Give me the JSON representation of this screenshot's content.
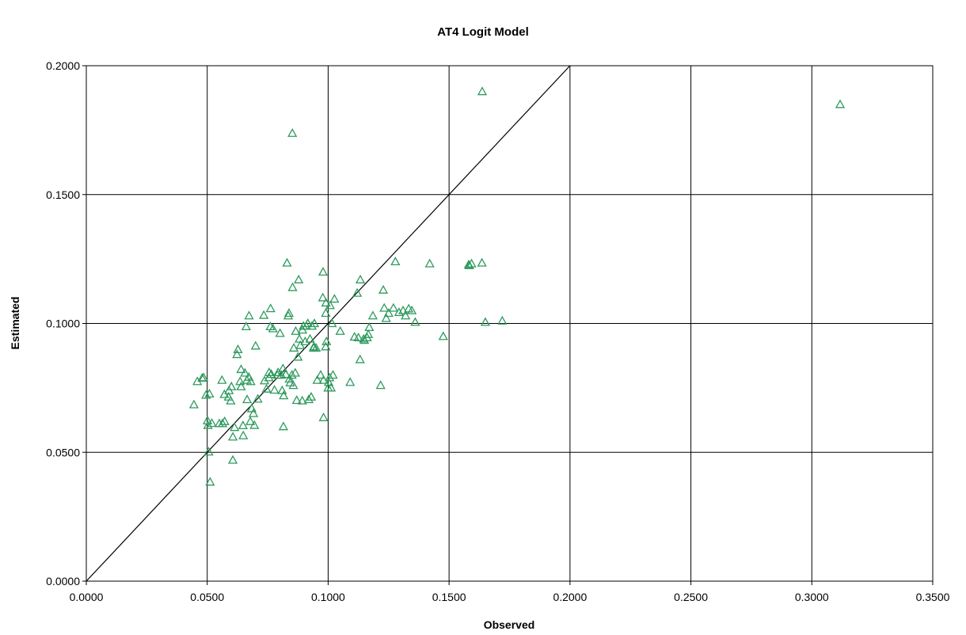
{
  "chart_data": {
    "type": "scatter",
    "title": "AT4 Logit Model",
    "xlabel": "Observed",
    "ylabel": "Estimated",
    "xlim": [
      0,
      0.35
    ],
    "ylim": [
      0,
      0.2
    ],
    "x_ticks": [
      "0.0000",
      "0.0500",
      "0.1000",
      "0.1500",
      "0.2000",
      "0.2500",
      "0.3000",
      "0.3500"
    ],
    "y_ticks": [
      "0.0000",
      "0.0500",
      "0.1000",
      "0.1500",
      "0.2000"
    ],
    "grid": true,
    "marker": "triangle-open",
    "marker_color": "#2e9a5e",
    "reference_line": {
      "from": [
        0,
        0
      ],
      "to": [
        0.2,
        0.2
      ]
    },
    "points": [
      [
        0.0445,
        0.0685
      ],
      [
        0.0459,
        0.0775
      ],
      [
        0.0479,
        0.0788
      ],
      [
        0.0485,
        0.079
      ],
      [
        0.0495,
        0.0722
      ],
      [
        0.0501,
        0.0623
      ],
      [
        0.0509,
        0.0727
      ],
      [
        0.0503,
        0.0605
      ],
      [
        0.0506,
        0.0502
      ],
      [
        0.0512,
        0.0385
      ],
      [
        0.0519,
        0.0613
      ],
      [
        0.055,
        0.0612
      ],
      [
        0.0563,
        0.0612
      ],
      [
        0.0572,
        0.062
      ],
      [
        0.0561,
        0.078
      ],
      [
        0.0571,
        0.0725
      ],
      [
        0.059,
        0.074
      ],
      [
        0.0588,
        0.0715
      ],
      [
        0.0597,
        0.07
      ],
      [
        0.06,
        0.0755
      ],
      [
        0.0606,
        0.047
      ],
      [
        0.0606,
        0.056
      ],
      [
        0.0613,
        0.0597
      ],
      [
        0.0623,
        0.088
      ],
      [
        0.0627,
        0.0899
      ],
      [
        0.0636,
        0.0775
      ],
      [
        0.064,
        0.0822
      ],
      [
        0.064,
        0.0755
      ],
      [
        0.0648,
        0.0604
      ],
      [
        0.0649,
        0.0565
      ],
      [
        0.0656,
        0.0808
      ],
      [
        0.0661,
        0.0988
      ],
      [
        0.0664,
        0.078
      ],
      [
        0.0665,
        0.0705
      ],
      [
        0.0672,
        0.0792
      ],
      [
        0.0673,
        0.103
      ],
      [
        0.0678,
        0.062
      ],
      [
        0.068,
        0.0775
      ],
      [
        0.0684,
        0.067
      ],
      [
        0.0691,
        0.0651
      ],
      [
        0.0695,
        0.0605
      ],
      [
        0.07,
        0.0913
      ],
      [
        0.0709,
        0.0707
      ],
      [
        0.0734,
        0.1032
      ],
      [
        0.0737,
        0.0778
      ],
      [
        0.0745,
        0.0746
      ],
      [
        0.0755,
        0.079
      ],
      [
        0.0756,
        0.081
      ],
      [
        0.0761,
        0.0988
      ],
      [
        0.0762,
        0.1058
      ],
      [
        0.0765,
        0.0803
      ],
      [
        0.0772,
        0.098
      ],
      [
        0.0778,
        0.0742
      ],
      [
        0.079,
        0.08
      ],
      [
        0.0793,
        0.081
      ],
      [
        0.0801,
        0.0962
      ],
      [
        0.0806,
        0.08
      ],
      [
        0.081,
        0.074
      ],
      [
        0.0815,
        0.06
      ],
      [
        0.0813,
        0.0825
      ],
      [
        0.0816,
        0.072
      ],
      [
        0.0825,
        0.0803
      ],
      [
        0.083,
        0.1235
      ],
      [
        0.0835,
        0.103
      ],
      [
        0.0838,
        0.104
      ],
      [
        0.084,
        0.0785
      ],
      [
        0.0843,
        0.077
      ],
      [
        0.085,
        0.08
      ],
      [
        0.0852,
        0.1738
      ],
      [
        0.0856,
        0.076
      ],
      [
        0.0853,
        0.114
      ],
      [
        0.0858,
        0.0905
      ],
      [
        0.0866,
        0.097
      ],
      [
        0.0864,
        0.0808
      ],
      [
        0.087,
        0.0702
      ],
      [
        0.0875,
        0.087
      ],
      [
        0.0878,
        0.117
      ],
      [
        0.0881,
        0.094
      ],
      [
        0.0885,
        0.0915
      ],
      [
        0.0893,
        0.07
      ],
      [
        0.0894,
        0.0975
      ],
      [
        0.0898,
        0.099
      ],
      [
        0.0905,
        0.093
      ],
      [
        0.091,
        0.099
      ],
      [
        0.0916,
        0.1
      ],
      [
        0.092,
        0.0705
      ],
      [
        0.0925,
        0.094
      ],
      [
        0.093,
        0.0715
      ],
      [
        0.0933,
        0.099
      ],
      [
        0.0941,
        0.091
      ],
      [
        0.094,
        0.0905
      ],
      [
        0.0943,
        0.1
      ],
      [
        0.095,
        0.0905
      ],
      [
        0.0955,
        0.078
      ],
      [
        0.0969,
        0.08
      ],
      [
        0.0978,
        0.11
      ],
      [
        0.0979,
        0.12
      ],
      [
        0.0981,
        0.0635
      ],
      [
        0.0981,
        0.078
      ],
      [
        0.099,
        0.104
      ],
      [
        0.0991,
        0.108
      ],
      [
        0.099,
        0.091
      ],
      [
        0.0993,
        0.093
      ],
      [
        0.1,
        0.075
      ],
      [
        0.1002,
        0.0772
      ],
      [
        0.1006,
        0.079
      ],
      [
        0.1008,
        0.107
      ],
      [
        0.1012,
        0.075
      ],
      [
        0.1016,
        0.1
      ],
      [
        0.102,
        0.08
      ],
      [
        0.1026,
        0.1095
      ],
      [
        0.105,
        0.097
      ],
      [
        0.1091,
        0.0772
      ],
      [
        0.1109,
        0.0948
      ],
      [
        0.112,
        0.1118
      ],
      [
        0.1125,
        0.0945
      ],
      [
        0.1132,
        0.086
      ],
      [
        0.1133,
        0.117
      ],
      [
        0.1147,
        0.094
      ],
      [
        0.115,
        0.0935
      ],
      [
        0.1161,
        0.0945
      ],
      [
        0.1166,
        0.0958
      ],
      [
        0.117,
        0.0985
      ],
      [
        0.1185,
        0.103
      ],
      [
        0.1217,
        0.076
      ],
      [
        0.1228,
        0.113
      ],
      [
        0.1232,
        0.106
      ],
      [
        0.124,
        0.102
      ],
      [
        0.125,
        0.104
      ],
      [
        0.127,
        0.106
      ],
      [
        0.1278,
        0.124
      ],
      [
        0.1293,
        0.1043
      ],
      [
        0.131,
        0.105
      ],
      [
        0.132,
        0.103
      ],
      [
        0.1333,
        0.1057
      ],
      [
        0.1346,
        0.105
      ],
      [
        0.136,
        0.1005
      ],
      [
        0.142,
        0.1232
      ],
      [
        0.1476,
        0.095
      ],
      [
        0.1581,
        0.1228
      ],
      [
        0.1584,
        0.1225
      ],
      [
        0.1593,
        0.1232
      ],
      [
        0.1637,
        0.19
      ],
      [
        0.1636,
        0.1235
      ],
      [
        0.165,
        0.1005
      ],
      [
        0.172,
        0.101
      ],
      [
        0.3117,
        0.185
      ]
    ]
  }
}
